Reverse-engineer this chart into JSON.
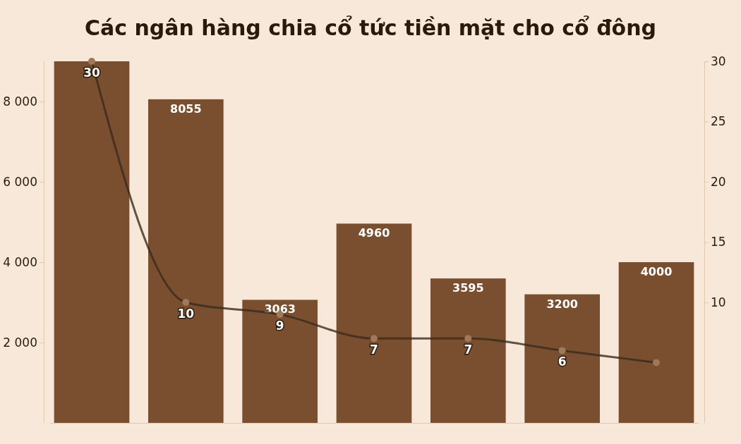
{
  "chart_data": {
    "type": "bar",
    "title": "Các ngân hàng chia cổ tức tiền mặt cho cổ đông",
    "categories": [
      null,
      null,
      null,
      null,
      null,
      null,
      null
    ],
    "ylim": [
      0,
      9000
    ],
    "yticks": [
      {
        "value": 2000,
        "label": "2 000"
      },
      {
        "value": 4000,
        "label": "4 000"
      },
      {
        "value": 6000,
        "label": "6 000"
      },
      {
        "value": 8000,
        "label": "8 000"
      }
    ],
    "y2lim": [
      0,
      30
    ],
    "y2ticks": [
      10,
      15,
      20,
      25,
      30
    ],
    "marker": "circle",
    "series": [
      {
        "color": "#7a4f30",
        "values": [
          9000,
          8055,
          3063,
          4960,
          3595,
          3200,
          4000
        ],
        "value_labels": [
          null,
          "8055",
          "3063",
          "4960",
          "3595",
          "3200",
          "4000"
        ]
      },
      {
        "type": "line",
        "axis": "y2",
        "color": "#3b2a1e",
        "values": [
          30,
          10,
          9,
          7,
          7,
          6,
          5
        ],
        "value_labels": [
          "30",
          "10",
          "9",
          "7",
          "7",
          "6",
          null
        ]
      }
    ]
  }
}
